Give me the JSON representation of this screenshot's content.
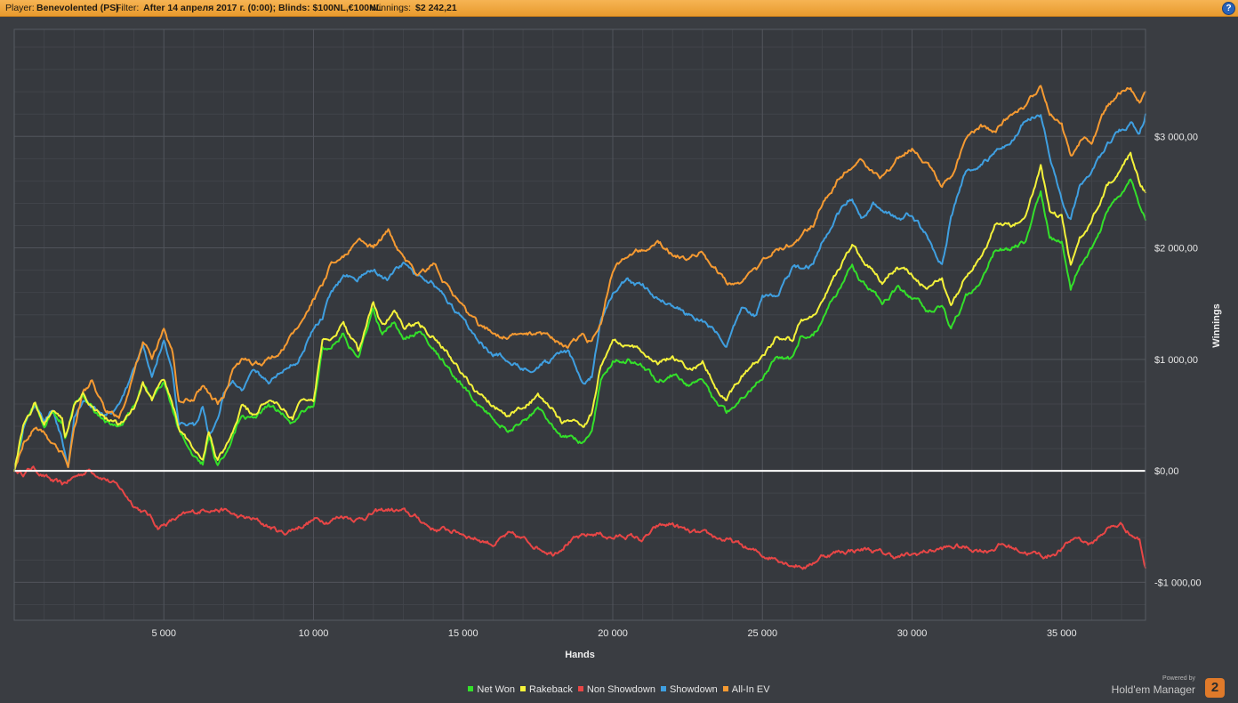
{
  "header": {
    "player_label": "Player:",
    "player_value": "Benevolented (PS)",
    "filter_label": "Filter:",
    "filter_value": "After 14 апреля 2017 г. (0:00); Blinds: $100NL,€100NL",
    "winnings_label": "Winnings:",
    "winnings_value": "$2 242,21",
    "help_glyph": "?"
  },
  "branding": {
    "powered_by": "Powered by",
    "product": "Hold'em Manager",
    "logo_glyph": "2"
  },
  "chart_data": {
    "type": "line",
    "title": "",
    "xlabel": "Hands",
    "ylabel": "Winnings",
    "xlim": [
      0,
      37800
    ],
    "ylim": [
      -1340,
      3960
    ],
    "x_ticks": [
      5000,
      10000,
      15000,
      20000,
      25000,
      30000,
      35000
    ],
    "x_tick_labels": [
      "5 000",
      "10 000",
      "15 000",
      "20 000",
      "25 000",
      "30 000",
      "35 000"
    ],
    "y_ticks": [
      -1000,
      0,
      1000,
      2000,
      3000
    ],
    "y_tick_labels": [
      "-$1 000,00",
      "$0,00",
      "$1 000,00",
      "$2 000,00",
      "$3 000,00"
    ],
    "grid": true,
    "legend_position": "bottom",
    "zero_line": true,
    "series": [
      {
        "name": "Net Won",
        "color": "#33e02a",
        "x": [
          0,
          300,
          700,
          1000,
          1300,
          1600,
          1700,
          2000,
          2300,
          2600,
          3000,
          3500,
          4000,
          4300,
          4600,
          5000,
          5500,
          6000,
          6300,
          6500,
          6800,
          7000,
          7300,
          7600,
          8000,
          8500,
          9000,
          9300,
          9600,
          10000,
          10300,
          10600,
          11000,
          11500,
          12000,
          12300,
          12700,
          13000,
          13500,
          14000,
          14500,
          15000,
          15500,
          16000,
          16500,
          17000,
          17500,
          18000,
          18300,
          18700,
          19000,
          19300,
          19600,
          20000,
          20500,
          21000,
          21500,
          22000,
          22500,
          23000,
          23500,
          23800,
          24300,
          24800,
          25000,
          25500,
          26000,
          26300,
          26700,
          27000,
          27500,
          28000,
          28300,
          28700,
          29000,
          29500,
          30000,
          30500,
          31000,
          31300,
          31800,
          32300,
          32800,
          33300,
          33800,
          34300,
          34600,
          35000,
          35300,
          35600,
          36000,
          36500,
          37000,
          37300,
          37600,
          37800
        ],
        "y": [
          0,
          400,
          600,
          420,
          560,
          450,
          300,
          560,
          700,
          560,
          450,
          380,
          560,
          780,
          600,
          780,
          360,
          120,
          60,
          300,
          40,
          120,
          300,
          520,
          450,
          600,
          500,
          420,
          560,
          580,
          1100,
          1100,
          1240,
          1000,
          1450,
          1200,
          1350,
          1180,
          1250,
          1100,
          950,
          750,
          580,
          480,
          380,
          450,
          550,
          420,
          300,
          280,
          240,
          380,
          800,
          1000,
          1000,
          930,
          800,
          870,
          760,
          830,
          580,
          500,
          680,
          800,
          850,
          1050,
          1000,
          1200,
          1220,
          1350,
          1600,
          1850,
          1700,
          1620,
          1500,
          1640,
          1550,
          1450,
          1500,
          1250,
          1550,
          1700,
          2000,
          1980,
          2050,
          2500,
          2100,
          2050,
          1600,
          1850,
          2000,
          2300,
          2500,
          2600,
          2350,
          2250
        ]
      },
      {
        "name": "Rakeback",
        "color": "#f4f23a",
        "x": [
          0,
          300,
          700,
          1000,
          1300,
          1600,
          1700,
          2000,
          2300,
          2600,
          3000,
          3500,
          4000,
          4300,
          4600,
          5000,
          5500,
          6000,
          6300,
          6500,
          6800,
          7000,
          7300,
          7600,
          8000,
          8500,
          9000,
          9300,
          9600,
          10000,
          10300,
          10600,
          11000,
          11500,
          12000,
          12300,
          12700,
          13000,
          13500,
          14000,
          14500,
          15000,
          15500,
          16000,
          16500,
          17000,
          17500,
          18000,
          18300,
          18700,
          19000,
          19300,
          19600,
          20000,
          20500,
          21000,
          21500,
          22000,
          22500,
          23000,
          23500,
          23800,
          24300,
          24800,
          25000,
          25500,
          26000,
          26300,
          26700,
          27000,
          27500,
          28000,
          28300,
          28700,
          29000,
          29500,
          30000,
          30500,
          31000,
          31300,
          31800,
          32300,
          32800,
          33300,
          33800,
          34300,
          34600,
          35000,
          35300,
          35600,
          36000,
          36500,
          37000,
          37300,
          37600,
          37800
        ],
        "y": [
          0,
          405,
          607,
          428,
          570,
          462,
          313,
          575,
          717,
          579,
          472,
          405,
          588,
          810,
          632,
          815,
          398,
          161,
          102,
          344,
          86,
          168,
          350,
          574,
          507,
          660,
          563,
          485,
          626,
          650,
          1173,
          1176,
          1319,
          1082,
          1535,
          1288,
          1441,
          1273,
          1346,
          1200,
          1053,
          856,
          689,
          592,
          495,
          568,
          671,
          544,
          426,
          408,
          370,
          511,
          933,
          1135,
          1138,
          1071,
          944,
          1017,
          910,
          983,
          736,
          658,
          840,
          963,
          1015,
          1218,
          1170,
          1372,
          1395,
          1528,
          1781,
          2034,
          1886,
          1808,
          1690,
          1833,
          1746,
          1649,
          1702,
          1454,
          1757,
          1910,
          2213,
          2196,
          2269,
          2722,
          2325,
          2277,
          1829,
          2081,
          2234,
          2537,
          2740,
          2843,
          2595,
          2497
        ]
      },
      {
        "name": "Non Showdown",
        "color": "#e84646",
        "x": [
          0,
          300,
          600,
          1000,
          1300,
          1600,
          2000,
          2500,
          3000,
          3500,
          4000,
          4500,
          4800,
          5000,
          5500,
          6000,
          6500,
          7000,
          7500,
          8000,
          8500,
          9000,
          9500,
          10000,
          10500,
          11000,
          11500,
          12000,
          12500,
          13000,
          13500,
          14000,
          14500,
          15000,
          15500,
          16000,
          16500,
          17000,
          17500,
          18000,
          18500,
          19000,
          19500,
          20000,
          20500,
          21000,
          21500,
          22000,
          22500,
          23000,
          23500,
          24000,
          24500,
          25000,
          25500,
          26000,
          26500,
          27000,
          27500,
          28000,
          28500,
          29000,
          29500,
          30000,
          30500,
          31000,
          31500,
          32000,
          32500,
          33000,
          33500,
          34000,
          34500,
          35000,
          35500,
          36000,
          36500,
          37000,
          37300,
          37600,
          37800
        ],
        "y": [
          0,
          -20,
          30,
          -40,
          -100,
          -130,
          -60,
          10,
          -50,
          -150,
          -300,
          -400,
          -500,
          -480,
          -420,
          -380,
          -330,
          -350,
          -420,
          -440,
          -500,
          -560,
          -500,
          -440,
          -440,
          -400,
          -430,
          -380,
          -350,
          -370,
          -430,
          -520,
          -530,
          -560,
          -610,
          -650,
          -580,
          -620,
          -680,
          -730,
          -630,
          -600,
          -560,
          -600,
          -580,
          -620,
          -510,
          -480,
          -550,
          -580,
          -600,
          -640,
          -700,
          -760,
          -780,
          -830,
          -860,
          -760,
          -730,
          -710,
          -700,
          -740,
          -770,
          -760,
          -720,
          -700,
          -680,
          -700,
          -710,
          -660,
          -700,
          -740,
          -770,
          -700,
          -590,
          -660,
          -520,
          -480,
          -560,
          -620,
          -870
        ]
      },
      {
        "name": "Showdown",
        "color": "#3f9fe0",
        "x": [
          0,
          300,
          700,
          1000,
          1300,
          1600,
          1800,
          2000,
          2300,
          2600,
          3000,
          3500,
          4000,
          4300,
          4600,
          5000,
          5300,
          5500,
          6000,
          6300,
          6500,
          6800,
          7000,
          7300,
          7600,
          8000,
          8500,
          9000,
          9500,
          10000,
          10300,
          10600,
          11000,
          11500,
          12000,
          12500,
          13000,
          13500,
          14000,
          14500,
          15000,
          15500,
          16000,
          16500,
          17000,
          17500,
          18000,
          18500,
          19000,
          19300,
          19600,
          20000,
          20500,
          21000,
          21500,
          22000,
          22500,
          23000,
          23500,
          23800,
          24300,
          24800,
          25000,
          25500,
          26000,
          26300,
          26700,
          27000,
          27500,
          28000,
          28300,
          28700,
          29000,
          29500,
          30000,
          30500,
          31000,
          31300,
          31800,
          32300,
          32800,
          33300,
          33800,
          34300,
          34600,
          35000,
          35300,
          35600,
          36000,
          36500,
          37000,
          37300,
          37600,
          37800
        ],
        "y": [
          0,
          380,
          600,
          450,
          560,
          300,
          60,
          500,
          650,
          600,
          500,
          560,
          880,
          1100,
          850,
          1200,
          850,
          400,
          380,
          600,
          350,
          450,
          700,
          800,
          750,
          900,
          800,
          900,
          1000,
          1280,
          1380,
          1600,
          1750,
          1750,
          1800,
          1720,
          1850,
          1720,
          1700,
          1500,
          1350,
          1200,
          1050,
          1000,
          930,
          950,
          1000,
          1050,
          800,
          850,
          1350,
          1600,
          1700,
          1650,
          1550,
          1500,
          1400,
          1350,
          1250,
          1100,
          1450,
          1400,
          1550,
          1600,
          1800,
          1800,
          1850,
          2050,
          2300,
          2450,
          2250,
          2400,
          2350,
          2250,
          2300,
          2100,
          1850,
          2250,
          2700,
          2750,
          2850,
          2950,
          3150,
          3200,
          2800,
          2400,
          2250,
          2550,
          2700,
          2900,
          3050,
          3100,
          3050,
          3200
        ]
      },
      {
        "name": "All-In EV",
        "color": "#f59a32",
        "x": [
          0,
          300,
          700,
          1000,
          1300,
          1600,
          1800,
          2000,
          2300,
          2600,
          3000,
          3500,
          4000,
          4300,
          4600,
          5000,
          5300,
          5500,
          6000,
          6300,
          6500,
          6800,
          7000,
          7300,
          7600,
          8000,
          8500,
          9000,
          9500,
          10000,
          10300,
          10600,
          11000,
          11500,
          12000,
          12500,
          13000,
          13500,
          14000,
          14500,
          15000,
          15500,
          16000,
          16500,
          17000,
          17500,
          18000,
          18500,
          19000,
          19300,
          19600,
          20000,
          20500,
          21000,
          21500,
          22000,
          22500,
          23000,
          23500,
          23800,
          24300,
          24800,
          25000,
          25500,
          26000,
          26300,
          26700,
          27000,
          27500,
          28000,
          28300,
          28700,
          29000,
          29500,
          30000,
          30500,
          31000,
          31300,
          31800,
          32300,
          32800,
          33300,
          33800,
          34300,
          34600,
          35000,
          35300,
          35600,
          36000,
          36500,
          37000,
          37300,
          37600,
          37800
        ],
        "y": [
          0,
          250,
          400,
          350,
          250,
          150,
          50,
          400,
          700,
          800,
          550,
          480,
          850,
          1150,
          1000,
          1250,
          1050,
          600,
          650,
          750,
          700,
          600,
          650,
          900,
          1000,
          950,
          1000,
          1100,
          1300,
          1550,
          1650,
          1850,
          1900,
          2100,
          2000,
          2150,
          1900,
          1750,
          1850,
          1650,
          1450,
          1300,
          1250,
          1200,
          1200,
          1250,
          1200,
          1100,
          1200,
          1150,
          1300,
          1800,
          1950,
          2000,
          2100,
          1950,
          1900,
          1950,
          1800,
          1700,
          1700,
          1800,
          1900,
          2000,
          2050,
          2100,
          2200,
          2400,
          2600,
          2750,
          2800,
          2700,
          2650,
          2800,
          2900,
          2750,
          2550,
          2650,
          2950,
          3100,
          3050,
          3200,
          3300,
          3450,
          3200,
          3100,
          2800,
          2950,
          2950,
          3250,
          3400,
          3450,
          3300,
          3400
        ]
      }
    ]
  }
}
